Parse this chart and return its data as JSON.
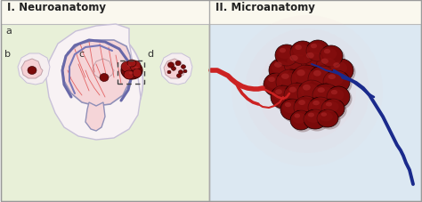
{
  "title_left": "I. Neuroanatomy",
  "title_right": "II. Microanatomy",
  "label_a": "a",
  "label_b": "b",
  "label_c": "c",
  "label_d": "d",
  "bg_left": "#e8f0d8",
  "bg_right": "#dce8f2",
  "title_bg": "#faf8ee",
  "panel_border": "#bbbbbb",
  "brain_outline": "#9090b8",
  "brain_fill": "#f5d5d8",
  "head_fill": "#f8f2f4",
  "head_outline": "#c8c0d8",
  "blood_red": "#cc2222",
  "blood_red_vessel": "#e05050",
  "blood_blue": "#1a2a8c",
  "tumor_dark": "#7a0a0a",
  "tumor_mid": "#9b1515",
  "glow_color": "#f0d8dc",
  "fig_width": 4.74,
  "fig_height": 2.28,
  "dpi": 100
}
